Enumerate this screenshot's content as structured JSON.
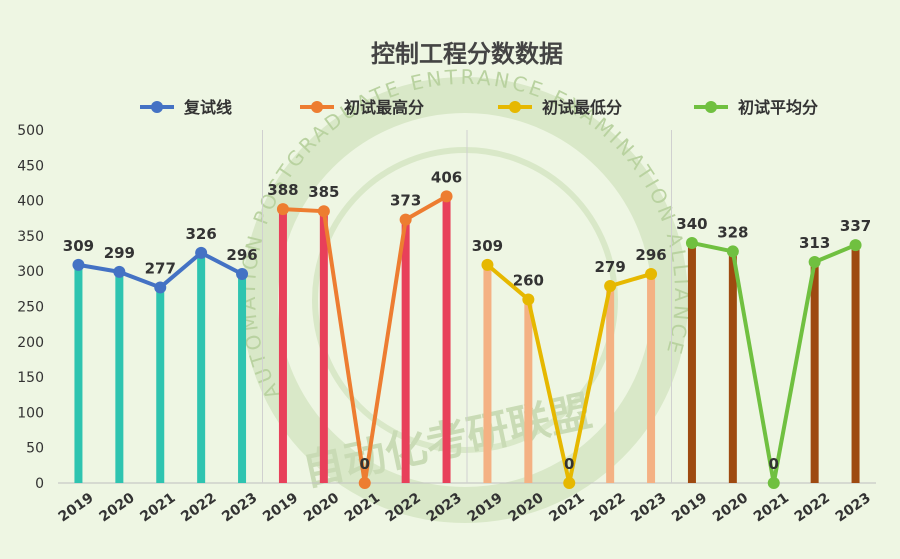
{
  "chart_data": {
    "type": "line",
    "title": "控制工程分数数据",
    "ylim": [
      0,
      500
    ],
    "y_ticks": [
      0,
      50,
      100,
      150,
      200,
      250,
      300,
      350,
      400,
      450,
      500
    ],
    "grid": false,
    "legend_position": "top",
    "groups": [
      {
        "series_name": "复试线",
        "line_color": "#4472c4",
        "bar_color": "#2ec4b0",
        "categories": [
          "2019",
          "2020",
          "2021",
          "2022",
          "2023"
        ],
        "values": [
          309,
          299,
          277,
          326,
          296
        ],
        "labels": [
          "309",
          "299",
          "277",
          "326",
          "296"
        ]
      },
      {
        "series_name": "初试最高分",
        "line_color": "#ed7d31",
        "bar_color": "#e8405a",
        "categories": [
          "2019",
          "2020",
          "2021",
          "2022",
          "2023"
        ],
        "values": [
          388,
          385,
          0,
          373,
          406
        ],
        "labels": [
          "388",
          "385",
          "0",
          "373",
          "406"
        ]
      },
      {
        "series_name": "初试最低分",
        "line_color": "#e6b800",
        "bar_color": "#f4b183",
        "categories": [
          "2019",
          "2020",
          "2021",
          "2022",
          "2023"
        ],
        "values": [
          309,
          260,
          0,
          279,
          296
        ],
        "labels": [
          "309",
          "260",
          "0",
          "279",
          "296"
        ]
      },
      {
        "series_name": "初试平均分",
        "line_color": "#70c040",
        "bar_color": "#9e4a10",
        "categories": [
          "2019",
          "2020",
          "2021",
          "2022",
          "2023"
        ],
        "values": [
          340,
          328,
          0,
          313,
          337
        ],
        "labels": [
          "340",
          "328",
          "0",
          "313",
          "337"
        ]
      }
    ]
  },
  "watermark": {
    "ring_text": "AUTOMATION POSTGRADUATE ENTRANCE EXAMINATION ALLIANCE",
    "center_text": "自动化考研联盟"
  }
}
